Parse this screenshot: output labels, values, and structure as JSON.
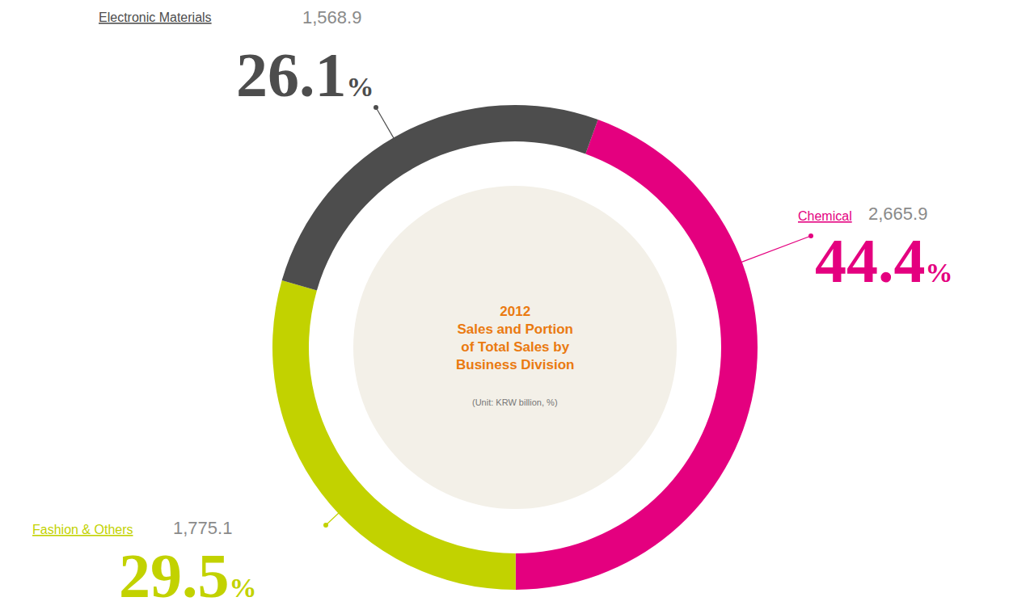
{
  "chart_data": {
    "type": "pie",
    "title": "2012\nSales and Portion\nof Total Sales by\nBusiness Division",
    "subtitle": "(Unit: KRW billion, %)",
    "categories": [
      "Chemical",
      "Fashion & Others",
      "Electronic Materials"
    ],
    "values": [
      44.4,
      29.5,
      26.1
    ],
    "value_labels": [
      "44.4%",
      "29.5%",
      "26.1%"
    ],
    "sales": [
      2665.9,
      1775.1,
      1568.9
    ],
    "sales_labels": [
      "2,665.9",
      "1,775.1",
      "1,568.9"
    ],
    "colors": [
      "#e4007f",
      "#c2d200",
      "#4d4d4d"
    ],
    "data_labels": true
  }
}
